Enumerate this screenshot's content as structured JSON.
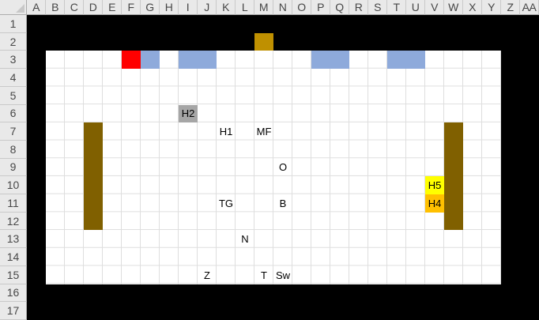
{
  "sheet": {
    "columns": [
      "A",
      "B",
      "C",
      "D",
      "E",
      "F",
      "G",
      "H",
      "I",
      "J",
      "K",
      "L",
      "M",
      "N",
      "O",
      "P",
      "Q",
      "R",
      "S",
      "T",
      "U",
      "V",
      "W",
      "X",
      "Y",
      "Z",
      "AA"
    ],
    "rows": [
      "1",
      "2",
      "3",
      "4",
      "5",
      "6",
      "7",
      "8",
      "9",
      "10",
      "11",
      "12",
      "13",
      "14",
      "15",
      "16",
      "17"
    ],
    "colors": {
      "canvas_black": "#000000",
      "sheet_white": "#FFFFFF",
      "gridline": "#DEDEDE",
      "header_bg": "#E9E9E9",
      "header_text": "#474747",
      "accent_red": "#FF0000",
      "accent_blue": "#8EAADB",
      "accent_gold": "#BF9000",
      "accent_olive": "#806000",
      "accent_gray": "#A6A6A6",
      "accent_yellow": "#FFFF00",
      "accent_orange": "#FFC000"
    },
    "white_region": {
      "col_start": "B",
      "col_end": "Y",
      "row_start": 3,
      "row_end": 15
    },
    "cells": [
      {
        "ref": "M2",
        "bg": "#BF9000",
        "label": ""
      },
      {
        "ref": "F3",
        "bg": "#FF0000",
        "label": ""
      },
      {
        "ref": "G3",
        "bg": "#8EAADB",
        "label": ""
      },
      {
        "ref": "I3",
        "bg": "#8EAADB",
        "colspan": 2,
        "label": ""
      },
      {
        "ref": "P3",
        "bg": "#8EAADB",
        "colspan": 2,
        "label": ""
      },
      {
        "ref": "T3",
        "bg": "#8EAADB",
        "colspan": 2,
        "label": ""
      },
      {
        "ref": "I6",
        "bg": "#A6A6A6",
        "label": "H2"
      },
      {
        "ref": "D7",
        "bg": "#806000",
        "rowspan": 6,
        "label": ""
      },
      {
        "ref": "W7",
        "bg": "#806000",
        "rowspan": 6,
        "label": ""
      },
      {
        "ref": "K7",
        "label": "H1"
      },
      {
        "ref": "M7",
        "label": "MF"
      },
      {
        "ref": "N9",
        "label": "O"
      },
      {
        "ref": "V10",
        "bg": "#FFFF00",
        "label": "H5"
      },
      {
        "ref": "V11",
        "bg": "#FFC000",
        "label": "H4"
      },
      {
        "ref": "K11",
        "label": "TG"
      },
      {
        "ref": "N11",
        "label": "B"
      },
      {
        "ref": "L13",
        "label": "N"
      },
      {
        "ref": "J15",
        "label": "Z"
      },
      {
        "ref": "M15",
        "label": "T"
      },
      {
        "ref": "N15",
        "label": "Sw"
      }
    ]
  }
}
